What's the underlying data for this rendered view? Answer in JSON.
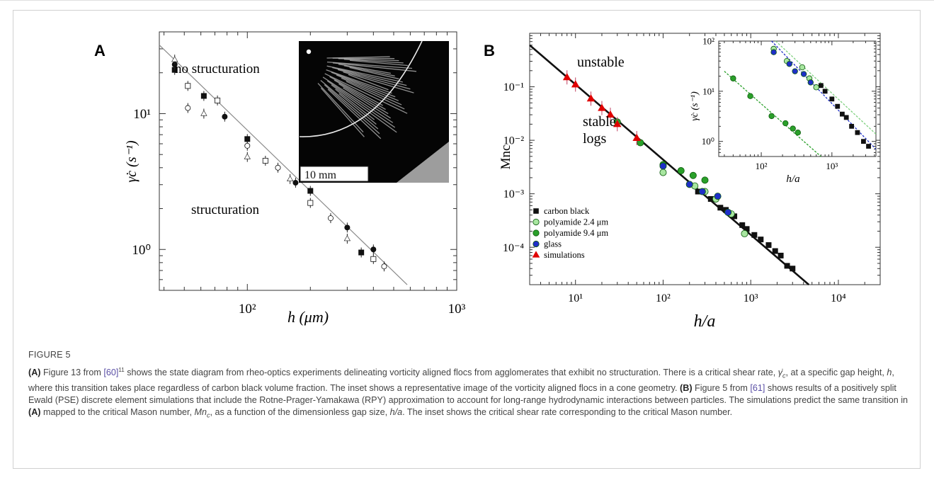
{
  "panel_a": {
    "letter": "A",
    "ylabel": "γ̇c (s⁻¹)",
    "xlabel": "h (μm)",
    "annotation_top": "no structuration",
    "annotation_bottom": "structuration",
    "inset_scale_label": "10 mm",
    "x_ticks": [
      "10²",
      "10³"
    ],
    "y_ticks": [
      "10⁰",
      "10¹"
    ]
  },
  "panel_b": {
    "letter": "B",
    "ylabel": "Mnc",
    "xlabel": "h/a",
    "annotation_top": "unstable",
    "annotation_bottom_1": "stable",
    "annotation_bottom_2": "logs",
    "x_ticks": [
      "10¹",
      "10²",
      "10³",
      "10⁴"
    ],
    "y_ticks": [
      "10⁻⁴",
      "10⁻³",
      "10⁻²",
      "10⁻¹"
    ],
    "legend": [
      {
        "label": "carbon black",
        "marker": "square",
        "color": "#111111"
      },
      {
        "label": "polyamide 2.4 μm",
        "marker": "circle",
        "color": "#a8e6a0"
      },
      {
        "label": "polyamide 9.4 μm",
        "marker": "circle",
        "color": "#2aa02a"
      },
      {
        "label": "glass",
        "marker": "circle",
        "color": "#1f2fc8"
      },
      {
        "label": "simulations",
        "marker": "triangle",
        "color": "#e00000"
      }
    ],
    "inset": {
      "ylabel": "γ̇c (s⁻¹)",
      "xlabel": "h/a",
      "x_ticks": [
        "10²",
        "10³"
      ],
      "y_ticks": [
        "10⁰",
        "10¹",
        "10²"
      ]
    }
  },
  "chart_data": [
    {
      "type": "scatter",
      "xlabel": "h (μm)",
      "ylabel": "γ̇c (s⁻¹)",
      "xscale": "log",
      "yscale": "log",
      "xlim": [
        38,
        1000
      ],
      "ylim": [
        0.5,
        40
      ],
      "fit_line": [
        [
          33,
          32
        ],
        [
          580,
          0.55
        ]
      ],
      "series": [
        {
          "marker": "filled",
          "points": [
            [
              45,
              21
            ],
            [
              45,
              23
            ],
            [
              62,
              13.5
            ],
            [
              78,
              9.5
            ],
            [
              100,
              6.5
            ],
            [
              170,
              3.1
            ],
            [
              200,
              2.7
            ],
            [
              300,
              1.45
            ],
            [
              350,
              0.95
            ],
            [
              400,
              1.0
            ]
          ]
        },
        {
          "marker": "open",
          "points": [
            [
              45,
              25
            ],
            [
              52,
              16
            ],
            [
              52,
              11
            ],
            [
              62,
              10
            ],
            [
              72,
              12.5
            ],
            [
              100,
              5.8
            ],
            [
              100,
              4.8
            ],
            [
              122,
              4.5
            ],
            [
              140,
              4.0
            ],
            [
              160,
              3.3
            ],
            [
              200,
              2.2
            ],
            [
              250,
              1.7
            ],
            [
              300,
              1.2
            ],
            [
              400,
              0.85
            ],
            [
              450,
              0.75
            ]
          ]
        }
      ]
    },
    {
      "type": "scatter",
      "xlabel": "h/a",
      "ylabel": "Mnc",
      "xscale": "log",
      "yscale": "log",
      "xlim": [
        3,
        30000
      ],
      "ylim": [
        2e-05,
        1
      ],
      "fit_line": [
        [
          3,
          0.6
        ],
        [
          4600,
          2e-05
        ]
      ],
      "series": [
        {
          "name": "carbon black",
          "points": [
            [
              250,
              0.0011
            ],
            [
              350,
              0.0008
            ],
            [
              450,
              0.00055
            ],
            [
              520,
              0.0005
            ],
            [
              650,
              0.00038
            ],
            [
              800,
              0.00026
            ],
            [
              900,
              0.00022
            ],
            [
              1100,
              0.00017
            ],
            [
              1300,
              0.00014
            ],
            [
              1600,
              0.00011
            ],
            [
              1900,
              8.5e-05
            ],
            [
              2200,
              7e-05
            ],
            [
              2600,
              4.5e-05
            ],
            [
              3000,
              4e-05
            ]
          ]
        },
        {
          "name": "polyamide 2.4 μm",
          "points": [
            [
              100,
              0.0025
            ],
            [
              230,
              0.0014
            ],
            [
              300,
              0.0011
            ],
            [
              400,
              0.0008
            ],
            [
              600,
              0.00042
            ],
            [
              850,
              0.00018
            ]
          ]
        },
        {
          "name": "polyamide 9.4 μm",
          "points": [
            [
              30,
              0.022
            ],
            [
              55,
              0.009
            ],
            [
              100,
              0.0035
            ],
            [
              160,
              0.0027
            ],
            [
              220,
              0.0022
            ],
            [
              300,
              0.0018
            ]
          ]
        },
        {
          "name": "glass",
          "points": [
            [
              100,
              0.0033
            ],
            [
              200,
              0.0015
            ],
            [
              280,
              0.0011
            ],
            [
              420,
              0.0009
            ],
            [
              550,
              0.00045
            ]
          ]
        },
        {
          "name": "simulations",
          "points": [
            [
              8,
              0.15
            ],
            [
              10,
              0.11
            ],
            [
              15,
              0.06
            ],
            [
              20,
              0.04
            ],
            [
              25,
              0.03
            ],
            [
              30,
              0.02
            ],
            [
              50,
              0.011
            ]
          ]
        }
      ]
    },
    {
      "type": "scatter",
      "xlabel": "h/a",
      "ylabel": "γ̇c (s⁻¹)",
      "xscale": "log",
      "yscale": "log",
      "xlim": [
        25,
        4200
      ],
      "ylim": [
        0.5,
        100
      ],
      "series": [
        {
          "name": "carbon black",
          "points": [
            [
              700,
              13
            ],
            [
              800,
              10
            ],
            [
              1000,
              7
            ],
            [
              1200,
              5
            ],
            [
              1400,
              3.5
            ],
            [
              1600,
              3
            ],
            [
              1900,
              2
            ],
            [
              2300,
              1.5
            ],
            [
              2800,
              1
            ],
            [
              3300,
              0.8
            ]
          ]
        },
        {
          "name": "polyamide 2.4 μm",
          "points": [
            [
              150,
              70
            ],
            [
              230,
              40
            ],
            [
              380,
              30
            ],
            [
              480,
              18
            ],
            [
              600,
              12
            ]
          ]
        },
        {
          "name": "polyamide 9.4 μm",
          "points": [
            [
              40,
              18
            ],
            [
              70,
              8
            ],
            [
              140,
              3.2
            ],
            [
              220,
              2.3
            ],
            [
              280,
              1.8
            ],
            [
              330,
              1.5
            ]
          ]
        },
        {
          "name": "glass",
          "points": [
            [
              150,
              60
            ],
            [
              250,
              35
            ],
            [
              300,
              25
            ],
            [
              400,
              22
            ],
            [
              500,
              15
            ]
          ]
        }
      ]
    }
  ],
  "caption": {
    "title": "FIGURE 5",
    "a_label": "(A)",
    "a_part1": " Figure 13 from ",
    "a_ref": "[60]",
    "a_sup": "11",
    "a_part2": " shows the state diagram from rheo-optics experiments delineating vorticity aligned flocs from agglomerates that exhibit no structuration. There is a critical shear rate, ",
    "gamma": "γ̇",
    "gamma_sub": "c",
    "a_part3": ", at a specific gap height, ",
    "h": "h",
    "a_part4": ", where this transition takes place regardless of carbon black volume fraction. The inset shows a representative image of the vorticity aligned flocs in a cone geometry. ",
    "b_label": "(B)",
    "b_part1": " Figure 5 from ",
    "b_ref": "[61]",
    "b_part2": " shows results of a positively split Ewald (PSE) discrete element simulations that include the Rotne-Prager-Yamakawa (RPY) approximation to account for long-range hydrodynamic interactions between particles. The simulations predict the same transition in ",
    "b_a_ref": "(A)",
    "b_part3": " mapped to the critical Mason number, ",
    "mn": "Mn",
    "mn_sub": "c",
    "b_part4": ", as a function of the dimensionless gap size, ",
    "ha": "h/a",
    "b_part5": ". The inset shows the critical shear rate corresponding to the critical Mason number."
  }
}
